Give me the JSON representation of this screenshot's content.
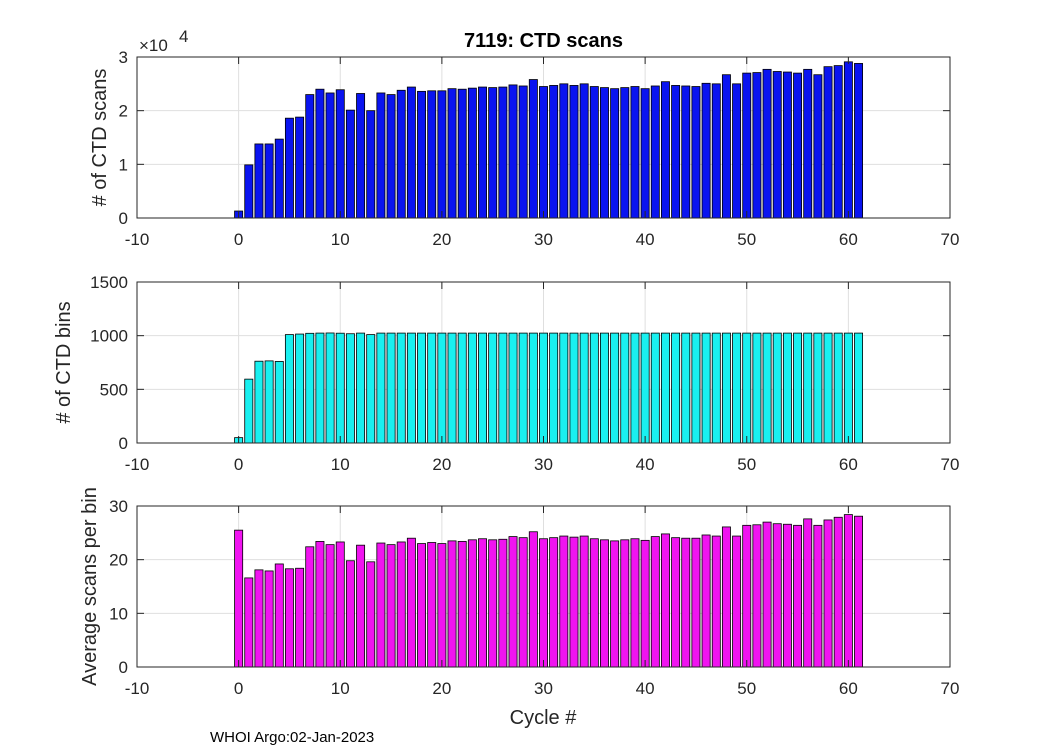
{
  "figure": {
    "footer": "WHOI Argo:02-Jan-2023",
    "xlabel": "Cycle #"
  },
  "colors": {
    "scans": "#0a14f0",
    "bins": "#19f0f0",
    "avg": "#f014f0"
  },
  "chart_data": [
    {
      "type": "bar",
      "title": "7119: CTD scans",
      "xlabel": "",
      "ylabel": "# of CTD scans",
      "exponent_label": "×10",
      "exponent_power": "4",
      "xlim": [
        -10,
        70
      ],
      "ylim": [
        0,
        3
      ],
      "xticks": [
        "-10",
        "0",
        "10",
        "20",
        "30",
        "40",
        "50",
        "60",
        "70"
      ],
      "yticks": [
        "0",
        "1",
        "2",
        "3"
      ],
      "grid": true,
      "x": [
        0,
        1,
        2,
        3,
        4,
        5,
        6,
        7,
        8,
        9,
        10,
        11,
        12,
        13,
        14,
        15,
        16,
        17,
        18,
        19,
        20,
        21,
        22,
        23,
        24,
        25,
        26,
        27,
        28,
        29,
        30,
        31,
        32,
        33,
        34,
        35,
        36,
        37,
        38,
        39,
        40,
        41,
        42,
        43,
        44,
        45,
        46,
        47,
        48,
        49,
        50,
        51,
        52,
        53,
        54,
        55,
        56,
        57,
        58,
        59,
        60,
        61
      ],
      "values": [
        0.13,
        0.99,
        1.38,
        1.38,
        1.47,
        1.86,
        1.88,
        2.3,
        2.4,
        2.33,
        2.39,
        2.01,
        2.32,
        2.0,
        2.33,
        2.3,
        2.38,
        2.44,
        2.36,
        2.37,
        2.37,
        2.41,
        2.4,
        2.42,
        2.44,
        2.43,
        2.44,
        2.48,
        2.46,
        2.58,
        2.45,
        2.47,
        2.5,
        2.47,
        2.5,
        2.45,
        2.43,
        2.41,
        2.43,
        2.45,
        2.41,
        2.46,
        2.54,
        2.47,
        2.46,
        2.45,
        2.51,
        2.5,
        2.67,
        2.5,
        2.7,
        2.71,
        2.77,
        2.73,
        2.72,
        2.7,
        2.77,
        2.67,
        2.82,
        2.84,
        2.91,
        2.88
      ]
    },
    {
      "type": "bar",
      "title": "",
      "xlabel": "",
      "ylabel": "# of CTD bins",
      "xlim": [
        -10,
        70
      ],
      "ylim": [
        0,
        1500
      ],
      "xticks": [
        "-10",
        "0",
        "10",
        "20",
        "30",
        "40",
        "50",
        "60",
        "70"
      ],
      "yticks": [
        "0",
        "500",
        "1000",
        "1500"
      ],
      "grid": true,
      "x": [
        0,
        1,
        2,
        3,
        4,
        5,
        6,
        7,
        8,
        9,
        10,
        11,
        12,
        13,
        14,
        15,
        16,
        17,
        18,
        19,
        20,
        21,
        22,
        23,
        24,
        25,
        26,
        27,
        28,
        29,
        30,
        31,
        32,
        33,
        34,
        35,
        36,
        37,
        38,
        39,
        40,
        41,
        42,
        43,
        44,
        45,
        46,
        47,
        48,
        49,
        50,
        51,
        52,
        53,
        54,
        55,
        56,
        57,
        58,
        59,
        60,
        61
      ],
      "values": [
        50,
        595,
        762,
        765,
        760,
        1010,
        1015,
        1022,
        1024,
        1025,
        1023,
        1018,
        1024,
        1010,
        1024,
        1024,
        1024,
        1024,
        1024,
        1024,
        1024,
        1024,
        1024,
        1024,
        1024,
        1024,
        1024,
        1024,
        1024,
        1024,
        1024,
        1024,
        1024,
        1024,
        1024,
        1024,
        1024,
        1024,
        1024,
        1024,
        1024,
        1024,
        1024,
        1024,
        1024,
        1024,
        1024,
        1024,
        1024,
        1024,
        1024,
        1024,
        1024,
        1024,
        1024,
        1024,
        1024,
        1024,
        1024,
        1024,
        1024,
        1024
      ]
    },
    {
      "type": "bar",
      "title": "",
      "xlabel": "Cycle #",
      "ylabel": "Average scans per bin",
      "xlim": [
        -10,
        70
      ],
      "ylim": [
        0,
        30
      ],
      "xticks": [
        "-10",
        "0",
        "10",
        "20",
        "30",
        "40",
        "50",
        "60",
        "70"
      ],
      "yticks": [
        "0",
        "10",
        "20",
        "30"
      ],
      "grid": true,
      "x": [
        0,
        1,
        2,
        3,
        4,
        5,
        6,
        7,
        8,
        9,
        10,
        11,
        12,
        13,
        14,
        15,
        16,
        17,
        18,
        19,
        20,
        21,
        22,
        23,
        24,
        25,
        26,
        27,
        28,
        29,
        30,
        31,
        32,
        33,
        34,
        35,
        36,
        37,
        38,
        39,
        40,
        41,
        42,
        43,
        44,
        45,
        46,
        47,
        48,
        49,
        50,
        51,
        52,
        53,
        54,
        55,
        56,
        57,
        58,
        59,
        60,
        61
      ],
      "values": [
        25.5,
        16.6,
        18.1,
        17.9,
        19.2,
        18.3,
        18.4,
        22.4,
        23.4,
        22.8,
        23.3,
        19.8,
        22.7,
        19.6,
        23.1,
        22.8,
        23.3,
        24.0,
        23.0,
        23.2,
        23.0,
        23.5,
        23.4,
        23.7,
        23.9,
        23.7,
        23.8,
        24.3,
        24.1,
        25.2,
        23.9,
        24.1,
        24.4,
        24.2,
        24.4,
        23.9,
        23.7,
        23.5,
        23.7,
        23.9,
        23.6,
        24.3,
        24.8,
        24.1,
        24.0,
        24.0,
        24.6,
        24.4,
        26.1,
        24.4,
        26.4,
        26.5,
        27.0,
        26.7,
        26.6,
        26.4,
        27.6,
        26.4,
        27.4,
        27.9,
        28.4,
        28.1
      ]
    }
  ]
}
